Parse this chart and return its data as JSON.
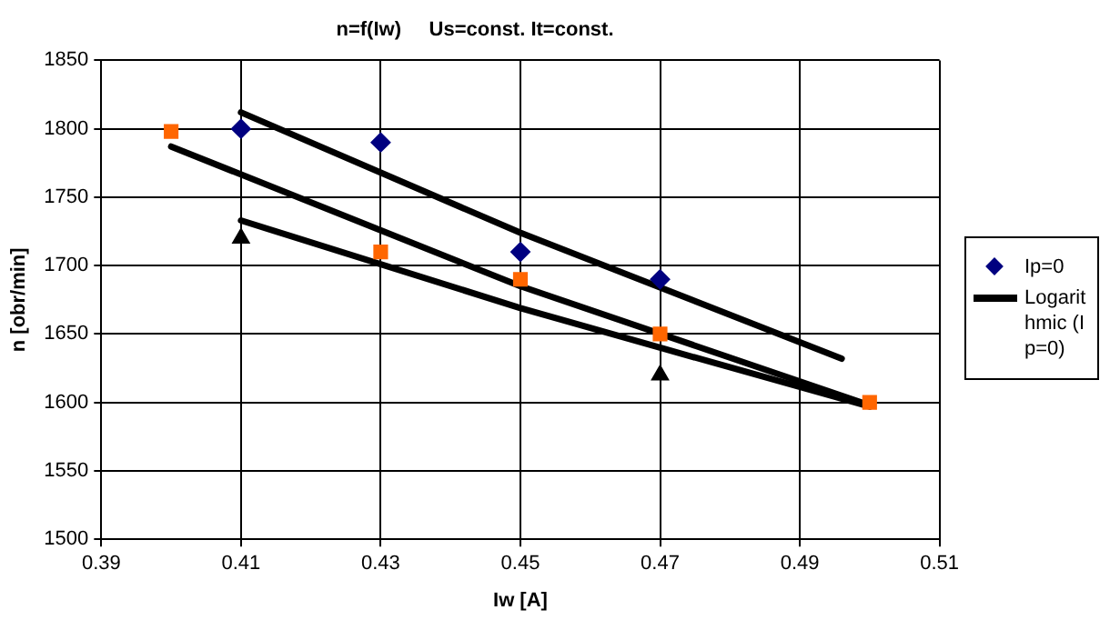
{
  "chart_data": {
    "type": "scatter",
    "title": "n=f(Iw)     Us=const. It=const.",
    "xlabel": "Iw [A]",
    "ylabel": "n [obr/min]",
    "xlim": [
      0.39,
      0.51
    ],
    "xticks": [
      0.39,
      0.41,
      0.43,
      0.45,
      0.47,
      0.49,
      0.51
    ],
    "ylim": [
      1500,
      1850
    ],
    "yticks": [
      1500,
      1550,
      1600,
      1650,
      1700,
      1750,
      1800,
      1850
    ],
    "grid": true,
    "legend": "right",
    "series": [
      {
        "name": "Ip=0",
        "type": "scatter",
        "marker": "diamond",
        "color": "#000080",
        "x": [
          0.41,
          0.43,
          0.45,
          0.47
        ],
        "values": [
          1800,
          1790,
          1710,
          1690
        ]
      },
      {
        "type": "scatter",
        "marker": "square",
        "color": "#ff6600",
        "x": [
          0.4,
          0.43,
          0.45,
          0.47,
          0.5
        ],
        "values": [
          1798,
          1710,
          1690,
          1650,
          1600
        ]
      },
      {
        "type": "scatter",
        "marker": "triangle",
        "color": "#000000",
        "x": [
          0.41,
          0.47
        ],
        "values": [
          1720,
          1620
        ]
      },
      {
        "name": "Logarithmic (Ip=0)",
        "type": "line",
        "marker": "none",
        "color": "#000000",
        "x": [
          0.41,
          0.45,
          0.496
        ],
        "values": [
          1812,
          1724,
          1632
        ]
      },
      {
        "type": "line",
        "marker": "none",
        "color": "#000000",
        "x": [
          0.4,
          0.45,
          0.5
        ],
        "values": [
          1787,
          1685,
          1598
        ]
      },
      {
        "type": "line",
        "marker": "none",
        "color": "#000000",
        "x": [
          0.41,
          0.45,
          0.47,
          0.5
        ],
        "values": [
          1733,
          1669,
          1640,
          1597
        ]
      }
    ]
  }
}
